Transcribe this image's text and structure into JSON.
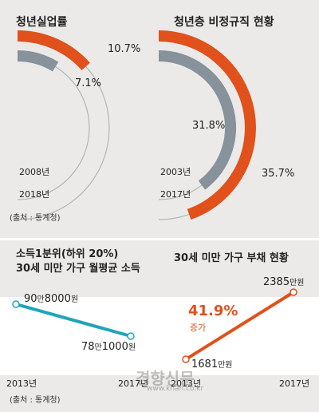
{
  "colors": {
    "accent": "#e0511c",
    "gray": "#87929a",
    "teal": "#1fa5b8",
    "ring": "#b4b4b4"
  },
  "chart_data": [
    {
      "type": "radial-bar",
      "title": "청년실업률",
      "series": [
        {
          "name": "2008년",
          "value": 7.1,
          "label": "7.1%"
        },
        {
          "name": "2018년",
          "value": 10.7,
          "label": "10.7%"
        }
      ]
    },
    {
      "type": "radial-bar",
      "title": "청년층 비정규직 현황",
      "series": [
        {
          "name": "2003년",
          "value": 31.8,
          "label": "31.8%"
        },
        {
          "name": "2017년",
          "value": 35.7,
          "label": "35.7%"
        }
      ]
    },
    {
      "type": "line",
      "title": "소득1분위(하위 20%)\n30세 미만 가구 월평균 소득",
      "categories": [
        "2013년",
        "2017년"
      ],
      "values": [
        908000,
        781000
      ],
      "labels": [
        {
          "num1": "90",
          "unit1": "만",
          "num2": "8000",
          "unit2": "원"
        },
        {
          "num1": "78",
          "unit1": "만",
          "num2": "1000",
          "unit2": "원"
        }
      ]
    },
    {
      "type": "line",
      "title": "30세 미만 가구 부채 현황",
      "categories": [
        "2013년",
        "2017년"
      ],
      "values": [
        1681,
        2385
      ],
      "labels": [
        {
          "num": "1681",
          "unit": "만원"
        },
        {
          "num": "2385",
          "unit": "만원"
        }
      ],
      "annotation": {
        "value": "41.9%",
        "label": "증가"
      }
    }
  ],
  "source_top": "(출처 : 통계청)",
  "source_bottom": "(출처 : 통계청)",
  "watermark": {
    "name": "경향신문",
    "url": "www.khan.co.kr"
  }
}
